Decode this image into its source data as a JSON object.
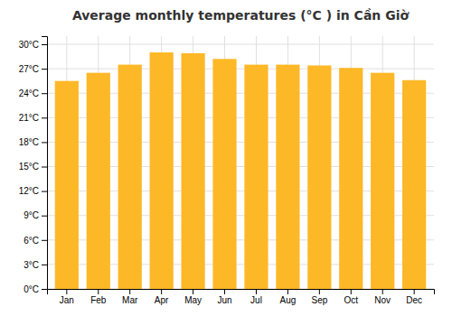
{
  "chart_data": {
    "type": "bar",
    "title": "Average monthly temperatures (°C ) in Cần Giờ",
    "categories": [
      "Jan",
      "Feb",
      "Mar",
      "Apr",
      "May",
      "Jun",
      "Jul",
      "Aug",
      "Sep",
      "Oct",
      "Nov",
      "Dec"
    ],
    "values": [
      25.5,
      26.5,
      27.5,
      29.0,
      28.9,
      28.2,
      27.5,
      27.5,
      27.4,
      27.1,
      26.5,
      25.6
    ],
    "color": "#FDB827",
    "ylim": [
      0,
      31
    ],
    "yticks": [
      {
        "value": 0,
        "label": "0°C"
      },
      {
        "value": 3,
        "label": "3°C"
      },
      {
        "value": 6,
        "label": "6°C"
      },
      {
        "value": 9,
        "label": "9°C"
      },
      {
        "value": 12,
        "label": "12°C"
      },
      {
        "value": 15,
        "label": "15°C"
      },
      {
        "value": 18,
        "label": "18°C"
      },
      {
        "value": 21,
        "label": "21°C"
      },
      {
        "value": 24,
        "label": "24°C"
      },
      {
        "value": 27,
        "label": "27°C"
      },
      {
        "value": 30,
        "label": "30°C"
      }
    ],
    "grid": true
  }
}
